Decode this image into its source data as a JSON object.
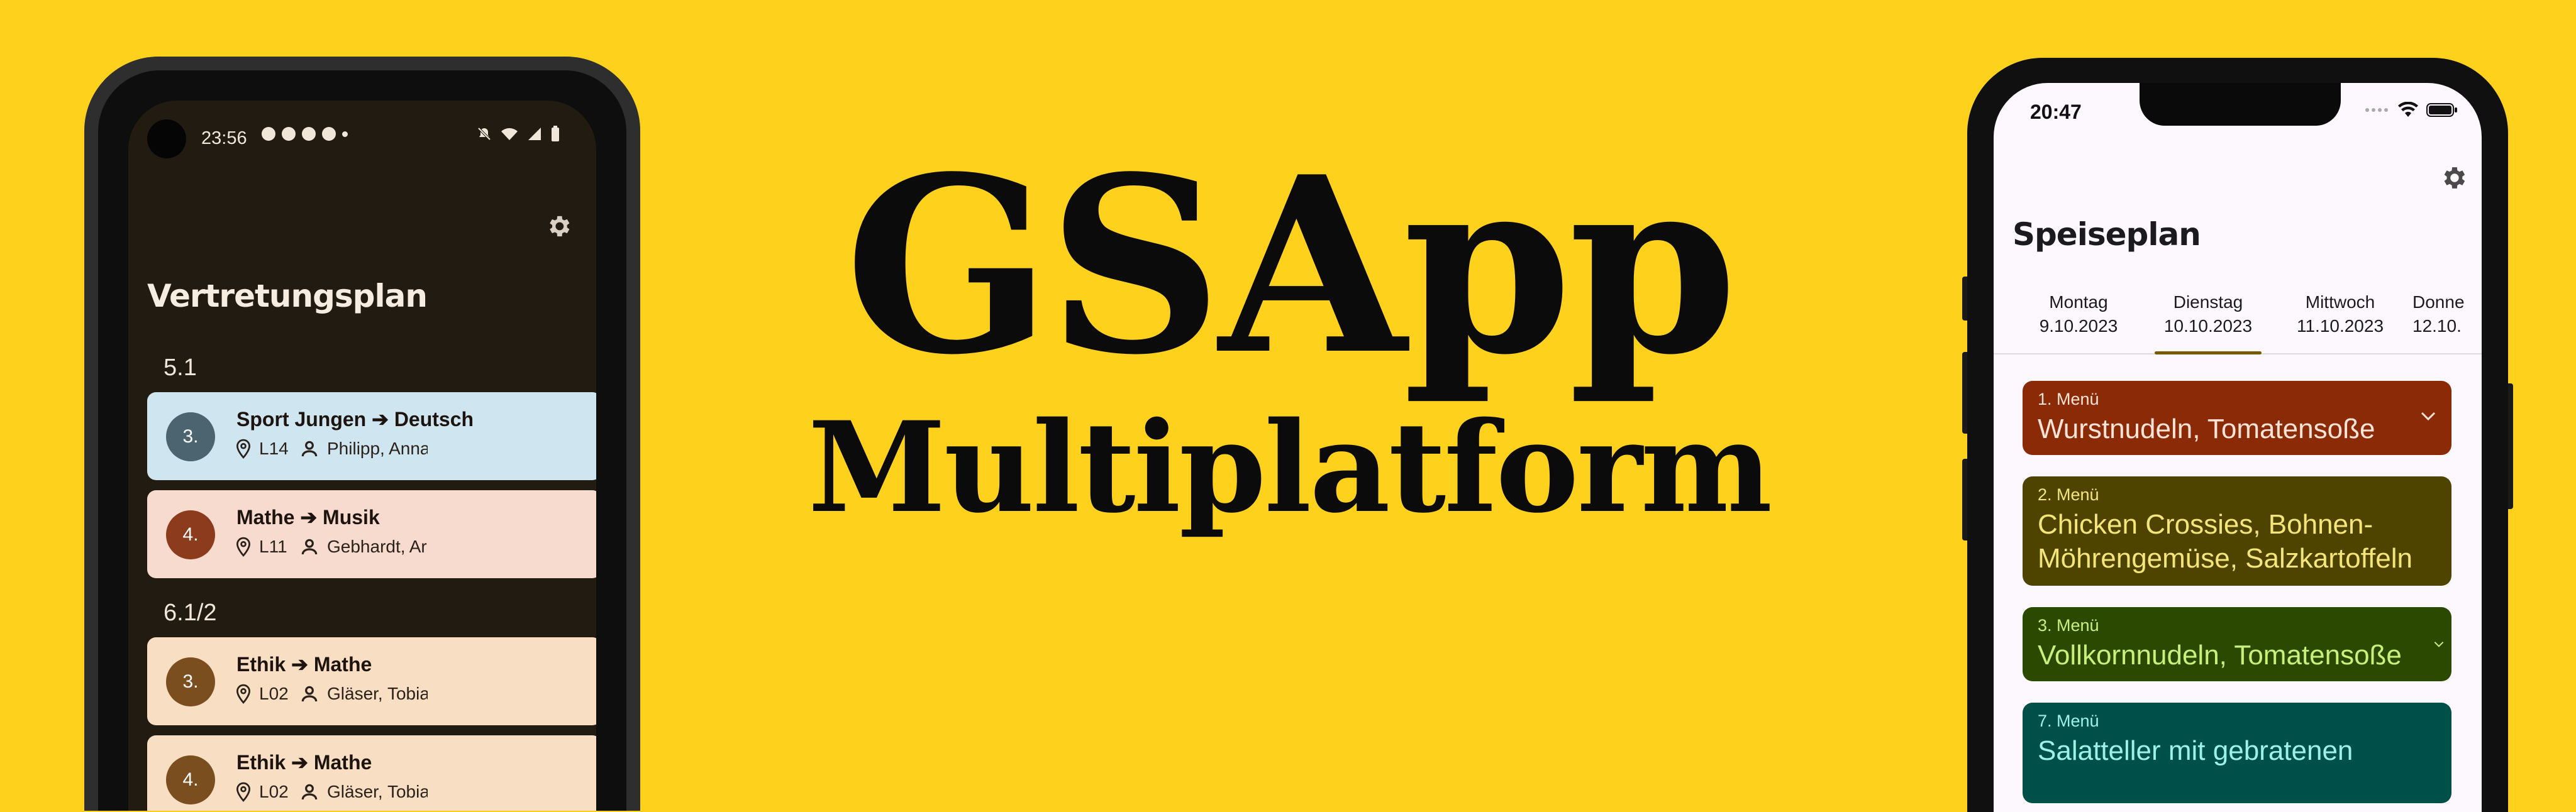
{
  "hero": {
    "title": "GSApp",
    "subtitle": "Multiplatform"
  },
  "android": {
    "status_time": "23:56",
    "heading": "Vertretungsplan",
    "sections": [
      {
        "label": "5.1",
        "entries": [
          {
            "period": "3.",
            "subject": "Sport Jungen ➔ Deutsch",
            "room": "L14",
            "teacher": "Philipp, Anna",
            "card_color": "#CFE6F0",
            "badge_color": "#4B6470"
          },
          {
            "period": "4.",
            "subject": "Mathe ➔ Musik",
            "room": "L11",
            "teacher": "Gebhardt, Ar",
            "card_color": "#F8DBCF",
            "badge_color": "#8C3B1C"
          }
        ]
      },
      {
        "label": "6.1/2",
        "entries": [
          {
            "period": "3.",
            "subject": "Ethik ➔ Mathe",
            "room": "L02",
            "teacher": "Gläser, Tobia",
            "card_color": "#F8DEC3",
            "badge_color": "#7A4E1F"
          },
          {
            "period": "4.",
            "subject": "Ethik ➔ Mathe",
            "room": "L02",
            "teacher": "Gläser, Tobia",
            "card_color": "#F8DEC3",
            "badge_color": "#7A4E1F"
          }
        ]
      }
    ]
  },
  "iphone": {
    "status_time": "20:47",
    "heading": "Speiseplan",
    "tabs": [
      {
        "day": "Montag",
        "date": "9.10.2023"
      },
      {
        "day": "Dienstag",
        "date": "10.10.2023"
      },
      {
        "day": "Mittwoch",
        "date": "11.10.2023"
      },
      {
        "day": "Donne",
        "date": "12.10."
      }
    ],
    "selected_tab": 1,
    "menus": [
      {
        "label": "1. Menü",
        "dish": "Wurstnudeln, Tomatensoße",
        "color": "#8A2A06",
        "text_color": "#FFE3D6"
      },
      {
        "label": "2. Menü",
        "dish": "Chicken Crossies, Bohnen-Möhrengemüse, Salzkartoffeln",
        "color": "#4E4400",
        "text_color": "#F3E57A"
      },
      {
        "label": "3. Menü",
        "dish": "Vollkornnudeln, Tomatensoße",
        "color": "#2B4A00",
        "text_color": "#C8F07A"
      },
      {
        "label": "7. Menü",
        "dish": "Salatteller mit gebratenen",
        "color": "#00504A",
        "text_color": "#9CF2E6"
      }
    ]
  }
}
